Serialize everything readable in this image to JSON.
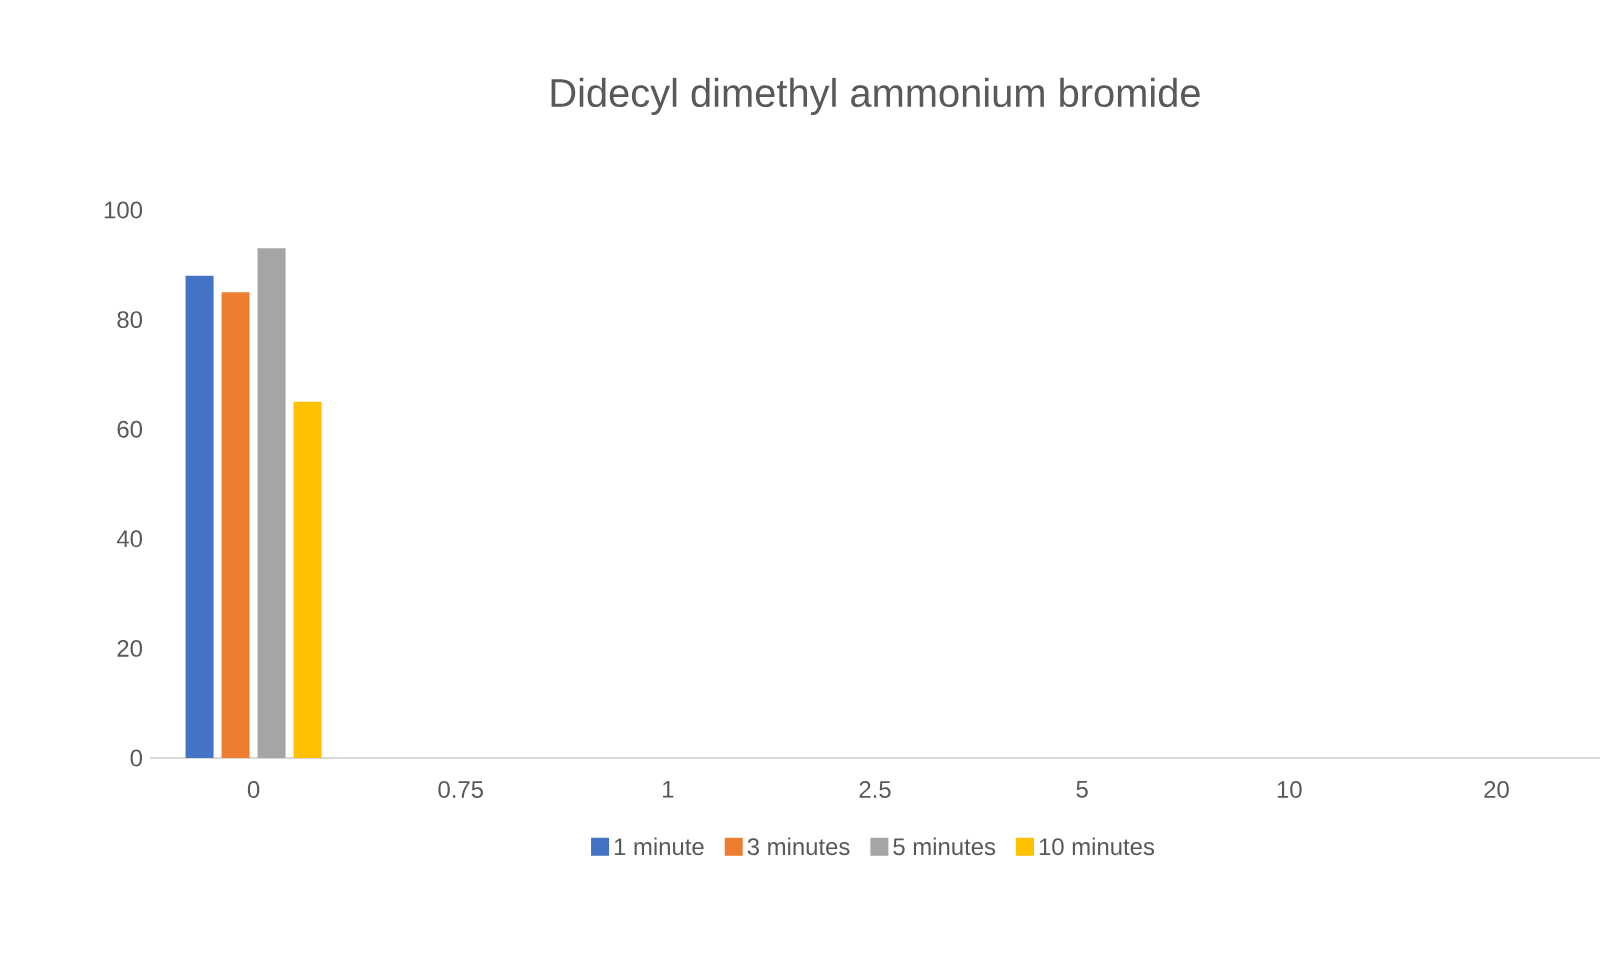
{
  "chart_data": {
    "type": "bar",
    "title": "Didecyl dimethyl ammonium bromide",
    "categories": [
      "0",
      "0.75",
      "1",
      "2.5",
      "5",
      "10",
      "20"
    ],
    "series": [
      {
        "name": "1 minute",
        "color": "#4472c4",
        "values": [
          88,
          0,
          0,
          0,
          0,
          0,
          0
        ]
      },
      {
        "name": "3 minutes",
        "color": "#ed7d31",
        "values": [
          85,
          0,
          0,
          0,
          0,
          0,
          0
        ]
      },
      {
        "name": "5 minutes",
        "color": "#a5a5a5",
        "values": [
          93,
          0,
          0,
          0,
          0,
          0,
          0
        ]
      },
      {
        "name": "10 minutes",
        "color": "#ffc000",
        "values": [
          65,
          0,
          0,
          0,
          0,
          0,
          0
        ]
      }
    ],
    "ylim": [
      0,
      100
    ],
    "yticks": [
      0,
      20,
      40,
      60,
      80,
      100
    ],
    "legend": "bottom"
  }
}
